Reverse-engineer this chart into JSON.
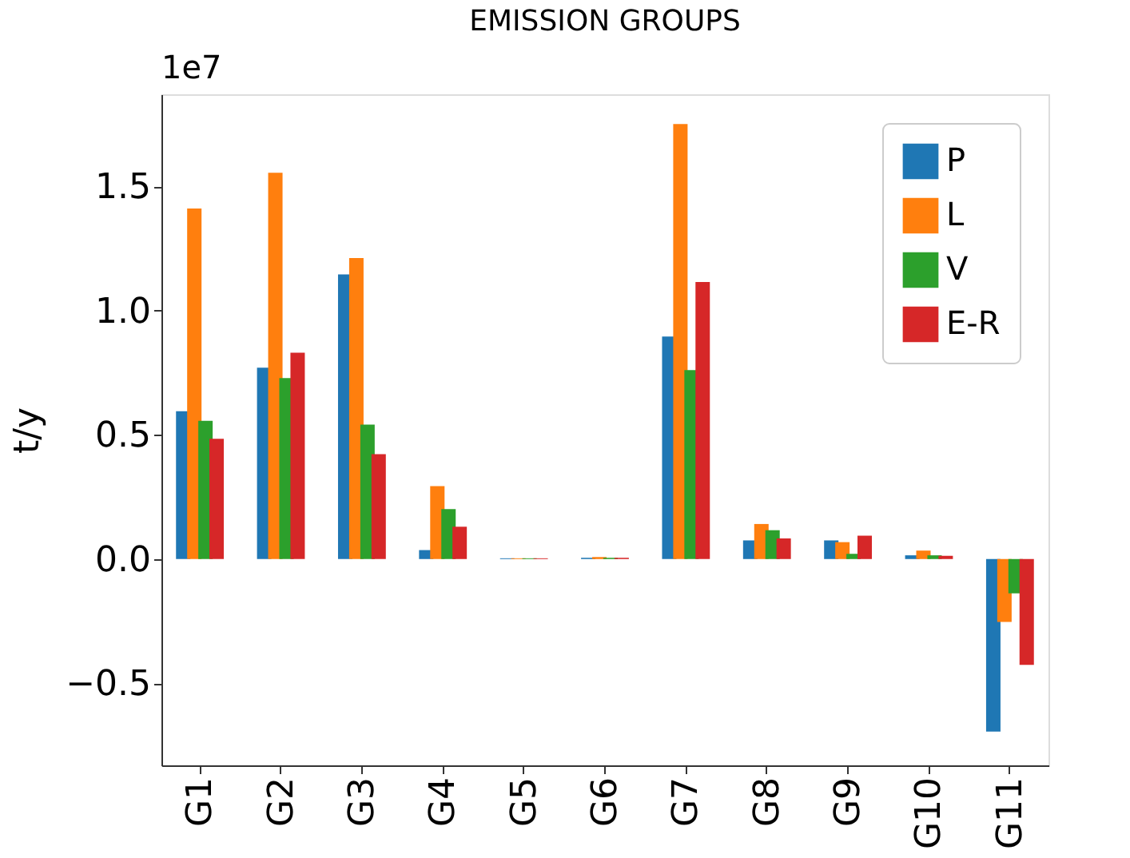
{
  "chart_data": {
    "type": "bar",
    "title": "EMISSION GROUPS",
    "ylabel": "t/y",
    "annotations": [
      "1e7"
    ],
    "categories": [
      "G1",
      "G2",
      "G3",
      "G4",
      "G5",
      "G6",
      "G7",
      "G8",
      "G9",
      "G10",
      "G11"
    ],
    "series": [
      {
        "name": "P",
        "color": "#1f77b4",
        "values": [
          0.595,
          0.77,
          1.145,
          0.036,
          0.003,
          0.005,
          0.895,
          0.075,
          0.075,
          0.015,
          -0.694
        ]
      },
      {
        "name": "L",
        "color": "#ff7f0e",
        "values": [
          1.41,
          1.554,
          1.211,
          0.293,
          0.003,
          0.008,
          1.75,
          0.141,
          0.068,
          0.034,
          -0.253
        ]
      },
      {
        "name": "V",
        "color": "#2ca02c",
        "values": [
          0.556,
          0.728,
          0.541,
          0.201,
          0.003,
          0.005,
          0.76,
          0.116,
          0.021,
          0.015,
          -0.138
        ]
      },
      {
        "name": "E-R",
        "color": "#d62728",
        "values": [
          0.484,
          0.83,
          0.422,
          0.13,
          0.003,
          0.005,
          1.115,
          0.083,
          0.094,
          0.013,
          -0.426
        ]
      }
    ],
    "ylim": [
      -0.83,
      1.87
    ],
    "yticks": [
      {
        "value": -0.5,
        "label": "−0.5"
      },
      {
        "value": 0,
        "label": "0.0"
      },
      {
        "value": 0.5,
        "label": "0.5"
      },
      {
        "value": 1.0,
        "label": "1.0"
      },
      {
        "value": 1.5,
        "label": "1.5"
      }
    ],
    "grid": false,
    "legend": "top right"
  }
}
